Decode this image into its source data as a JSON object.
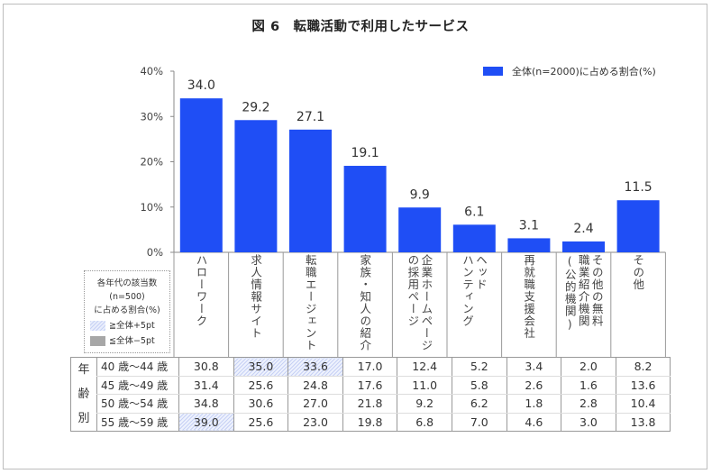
{
  "chart_data": {
    "type": "bar",
    "title": "図 6　転職活動で利用したサービス",
    "legend": {
      "label": "全体(n=2000)に占める割合(%)",
      "position": "top-right",
      "color": "#1f4ef5"
    },
    "ylim": [
      0,
      40
    ],
    "yticks": [
      "0%",
      "10%",
      "20%",
      "30%",
      "40%"
    ],
    "ytick_values": [
      0,
      10,
      20,
      30,
      40
    ],
    "xlabel": "",
    "ylabel": "",
    "grid": false,
    "categories": [
      "ハローワーク",
      "求人情報サイト",
      "転職エージェント",
      "家族・知人の紹介",
      "企業ホームページの採用ページ",
      "ヘッドハンティング",
      "再就職支援会社",
      "その他の無料職業紹介機関(公的機関)",
      "その他"
    ],
    "category_label_lines": [
      [
        "ハローワーク"
      ],
      [
        "求人情報サイト"
      ],
      [
        "転職エージェント"
      ],
      [
        "家族・知人の紹介"
      ],
      [
        "企業ホームページ",
        "の採用ページ"
      ],
      [
        "ヘッド",
        "ハンティング"
      ],
      [
        "再就職支援会社"
      ],
      [
        "その他の無料",
        "職業紹介機関",
        "(公的機関)"
      ],
      [
        "その他"
      ]
    ],
    "series": [
      {
        "name": "全体(n=2000)に占める割合(%)",
        "values": [
          34.0,
          29.2,
          27.1,
          19.1,
          9.9,
          6.1,
          3.1,
          2.4,
          11.5
        ],
        "labels": [
          "34.0",
          "29.2",
          "27.1",
          "19.1",
          "9.9",
          "6.1",
          "3.1",
          "2.4",
          "11.5"
        ]
      }
    ],
    "table": {
      "group_label": [
        "年",
        "齢",
        "別"
      ],
      "note": {
        "lines": [
          "各年代の該当数",
          "(n=500)",
          "に占める割合(%)"
        ],
        "high_label": "≧全体+5pt",
        "low_label": "≦全体−5pt"
      },
      "rows": [
        {
          "age": "40 歳～44 歳",
          "values": [
            "30.8",
            "35.0",
            "33.6",
            "17.0",
            "12.4",
            "5.2",
            "3.4",
            "2.0",
            "8.2"
          ],
          "highlight": [
            false,
            true,
            true,
            false,
            false,
            false,
            false,
            false,
            false
          ]
        },
        {
          "age": "45 歳～49 歳",
          "values": [
            "31.4",
            "25.6",
            "24.8",
            "17.6",
            "11.0",
            "5.8",
            "2.6",
            "1.6",
            "13.6"
          ],
          "highlight": [
            false,
            false,
            false,
            false,
            false,
            false,
            false,
            false,
            false
          ]
        },
        {
          "age": "50 歳～54 歳",
          "values": [
            "34.8",
            "30.6",
            "27.0",
            "21.8",
            "9.2",
            "6.2",
            "1.8",
            "2.8",
            "10.4"
          ],
          "highlight": [
            false,
            false,
            false,
            false,
            false,
            false,
            false,
            false,
            false
          ]
        },
        {
          "age": "55 歳～59 歳",
          "values": [
            "39.0",
            "25.6",
            "23.0",
            "19.8",
            "6.8",
            "7.0",
            "4.6",
            "3.0",
            "13.8"
          ],
          "highlight": [
            true,
            false,
            false,
            false,
            false,
            false,
            false,
            false,
            false
          ]
        }
      ]
    }
  }
}
